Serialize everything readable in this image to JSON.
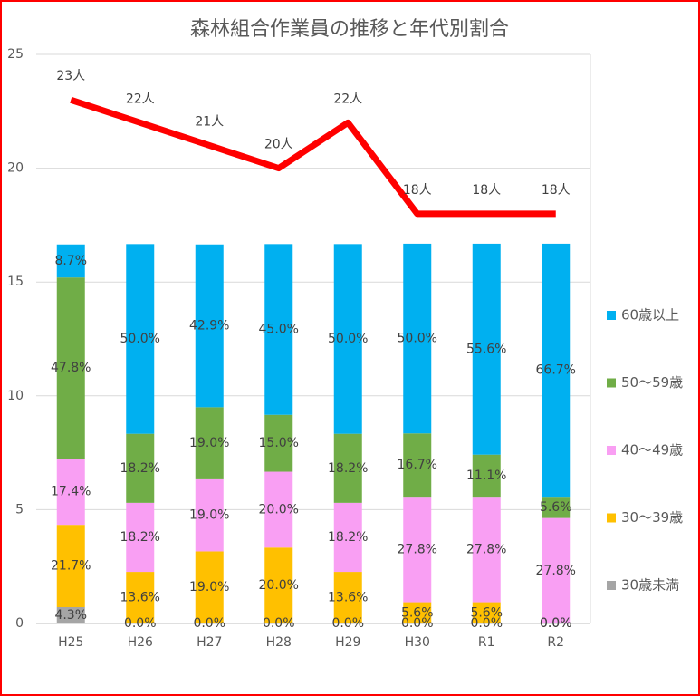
{
  "chart_data": {
    "type": "bar",
    "stacked": true,
    "title": "森林組合作業員の推移と年代別割合",
    "categories": [
      "H25",
      "H26",
      "H27",
      "H28",
      "H29",
      "H30",
      "R1",
      "R2"
    ],
    "ylim": [
      0,
      25
    ],
    "yticks": [
      0,
      5,
      10,
      15,
      20,
      25
    ],
    "y2lim": [
      0,
      150
    ],
    "grid": true,
    "legend": "right",
    "series": [
      {
        "name": "30歳未満",
        "color": "#a5a5a5",
        "axis": "y2",
        "values": [
          4.3,
          0,
          0,
          0,
          0,
          0,
          0,
          0
        ],
        "value_labels": [
          "4.3%",
          "0.0%",
          "0.0%",
          "0.0%",
          "0.0%",
          "0.0%",
          "0.0%",
          "0.0%"
        ]
      },
      {
        "name": "30〜39歳",
        "color": "#ffc000",
        "axis": "y2",
        "values": [
          21.7,
          13.6,
          19.0,
          20.0,
          13.6,
          5.6,
          5.6,
          0
        ],
        "value_labels": [
          "21.7%",
          "13.6%",
          "19.0%",
          "20.0%",
          "13.6%",
          "5.6%",
          "5.6%",
          "0.0%"
        ]
      },
      {
        "name": "40〜49歳",
        "color": "#f99ff3",
        "axis": "y2",
        "values": [
          17.4,
          18.2,
          19.0,
          20.0,
          18.2,
          27.8,
          27.8,
          27.8
        ],
        "value_labels": [
          "17.4%",
          "18.2%",
          "19.0%",
          "20.0%",
          "18.2%",
          "27.8%",
          "27.8%",
          "27.8%"
        ]
      },
      {
        "name": "50〜59歳",
        "color": "#70ad47",
        "axis": "y2",
        "values": [
          47.8,
          18.2,
          19.0,
          15.0,
          18.2,
          16.7,
          11.1,
          5.6
        ],
        "value_labels": [
          "47.8%",
          "18.2%",
          "19.0%",
          "15.0%",
          "18.2%",
          "16.7%",
          "11.1%",
          "5.6%"
        ]
      },
      {
        "name": "60歳以上",
        "color": "#00b0f0",
        "axis": "y2",
        "values": [
          8.7,
          50.0,
          42.9,
          45.0,
          50.0,
          50.0,
          55.6,
          66.7
        ],
        "value_labels": [
          "8.7%",
          "50.0%",
          "42.9%",
          "45.0%",
          "50.0%",
          "50.0%",
          "55.6%",
          "66.7%"
        ]
      }
    ],
    "line": {
      "color": "#ff0000",
      "values": [
        23,
        22,
        21,
        20,
        22,
        18,
        18,
        18
      ],
      "value_labels": [
        "23人",
        "22人",
        "21人",
        "20人",
        "22人",
        "18人",
        "18人",
        "18人"
      ]
    }
  }
}
